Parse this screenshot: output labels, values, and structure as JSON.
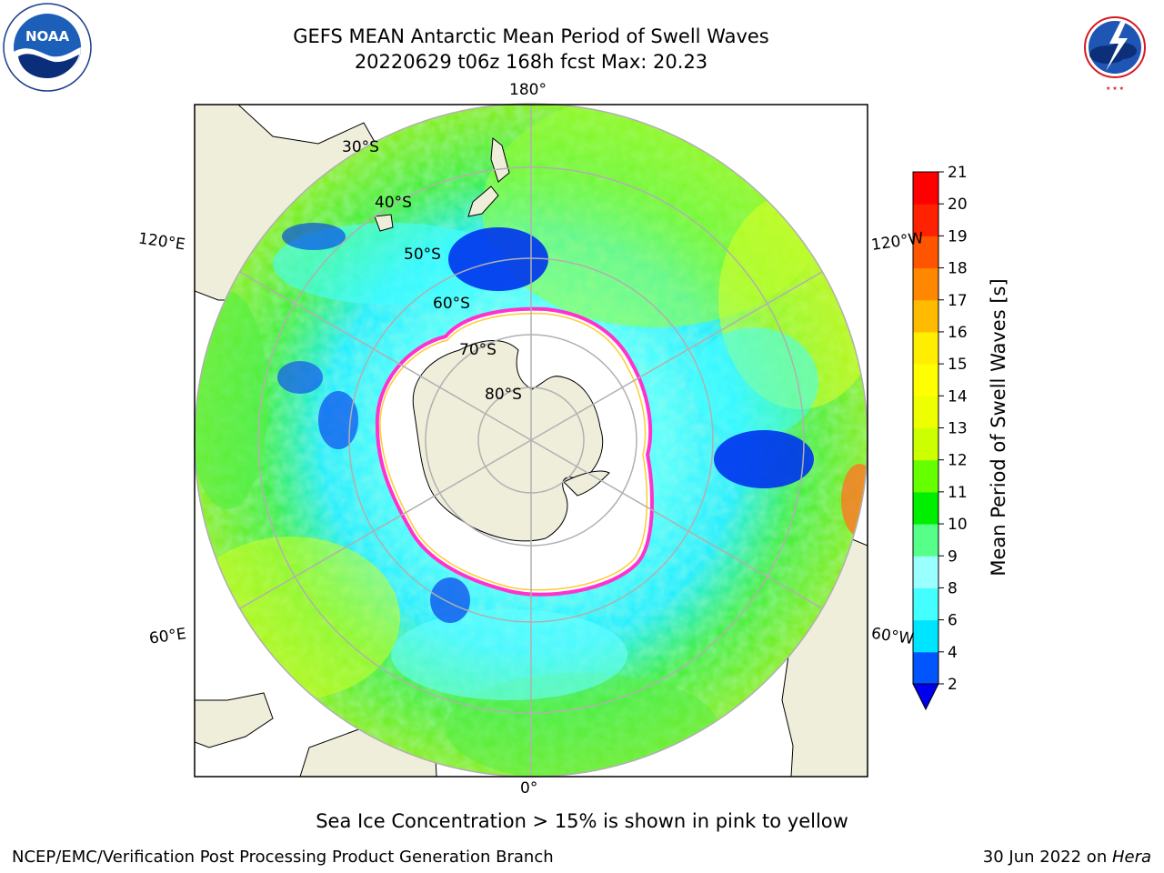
{
  "header": {
    "title_line1": "GEFS MEAN Antarctic Mean Period of Swell Waves",
    "title_line2": "20220629 t06z 168h fcst   Max: 20.23"
  },
  "logos": {
    "left": {
      "name": "NOAA",
      "ring_text": "NATIONAL OCEANIC AND ATMOSPHERIC ADMINISTRATION · U.S. DEPARTMENT OF COMMERCE"
    },
    "right": {
      "ring_text": "NATIONAL WEATHER SERVICE"
    }
  },
  "map": {
    "projection": "south polar stereographic",
    "longitude_labels": {
      "top": "180°",
      "bottom": "0°",
      "upper_left": "120°E",
      "upper_right": "120°W",
      "lower_left": "60°E",
      "lower_right": "60°W"
    },
    "latitude_labels": [
      "30°S",
      "40°S",
      "50°S",
      "60°S",
      "70°S",
      "80°S"
    ],
    "land_color": "#efeedb",
    "ice_edge_color": "#ff33cc",
    "no_data_color": "#ffffff"
  },
  "colorbar": {
    "label": "Mean Period of Swell Waves [s]",
    "ticks": [
      "2",
      "4",
      "6",
      "8",
      "9",
      "10",
      "11",
      "12",
      "13",
      "14",
      "15",
      "16",
      "17",
      "18",
      "19",
      "20",
      "21"
    ],
    "colors": [
      "#0055ff",
      "#00e5ff",
      "#44ffff",
      "#99ffff",
      "#55ff88",
      "#00ee00",
      "#66ff00",
      "#ccff00",
      "#eeff00",
      "#ffff00",
      "#ffee00",
      "#ffbb00",
      "#ff8800",
      "#ff5500",
      "#ff2200",
      "#ff0000"
    ],
    "extend_min_color": "#0000ee"
  },
  "note": "Sea Ice Concentration > 15% is shown in pink to yellow",
  "footer": {
    "left": "NCEP/EMC/Verification Post Processing Product Generation Branch",
    "right_date": "30 Jun 2022 on ",
    "right_machine": "Hera"
  }
}
